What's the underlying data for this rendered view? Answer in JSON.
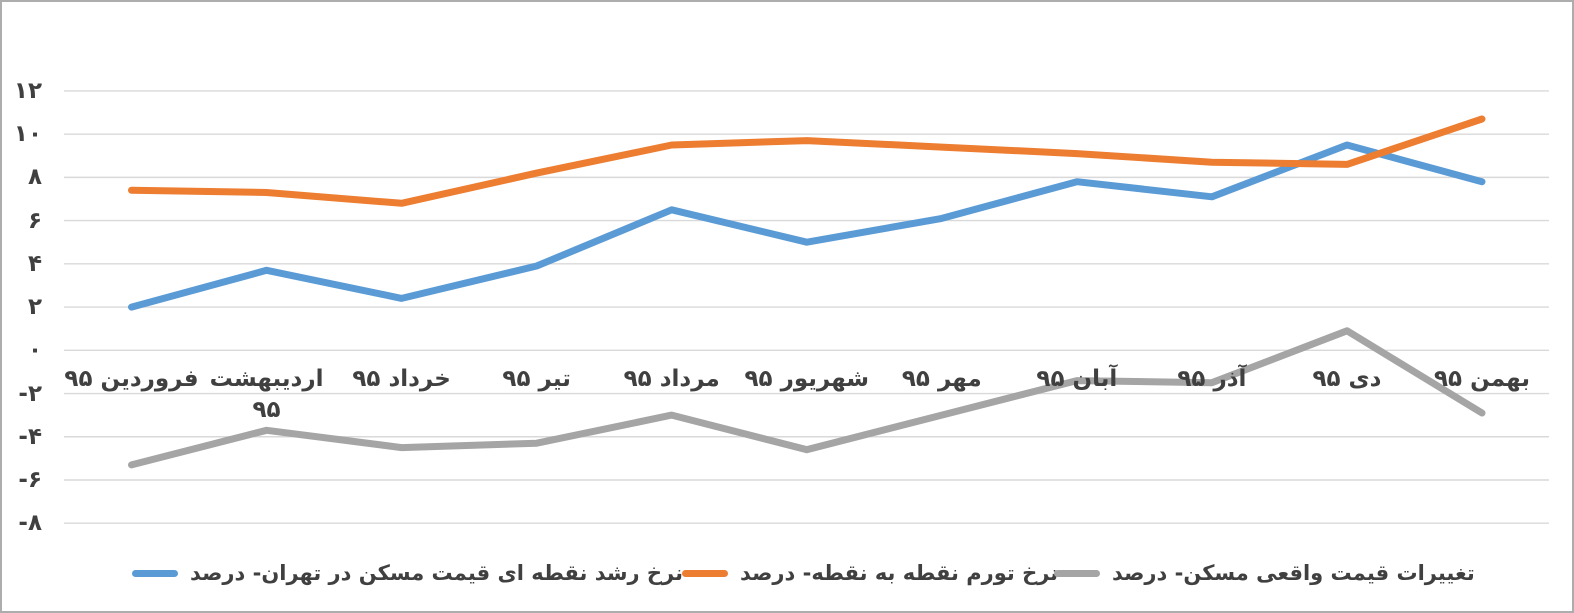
{
  "chart_data": {
    "type": "line",
    "title": "",
    "rtl": true,
    "grid": true,
    "legend_position": "bottom",
    "categories": [
      "فروردین ۹۵",
      "اردیبهشت\n۹۵",
      "خرداد ۹۵",
      "تیر ۹۵",
      "مرداد ۹۵",
      "شهریور ۹۵",
      "مهر ۹۵",
      "آبان ۹۵",
      "آذر ۹۵",
      "دی ۹۵",
      "بهمن ۹۵"
    ],
    "series": [
      {
        "name": "نرخ رشد نقطه ای قیمت مسکن در تهران- درصد",
        "color": "#5B9BD5",
        "values": [
          2.0,
          3.7,
          2.4,
          3.9,
          6.5,
          5.0,
          6.1,
          7.8,
          7.1,
          9.5,
          7.8
        ]
      },
      {
        "name": "نرخ تورم نقطه به نقطه- درصد",
        "color": "#ED7D31",
        "values": [
          7.4,
          7.3,
          6.8,
          8.2,
          9.5,
          9.7,
          9.4,
          9.1,
          8.7,
          8.6,
          10.7
        ]
      },
      {
        "name": "تغییرات قیمت واقعی مسکن- درصد",
        "color": "#A5A5A5",
        "values": [
          -5.3,
          -3.7,
          -4.5,
          -4.3,
          -3.0,
          -4.6,
          -3.0,
          -1.4,
          -1.5,
          0.9,
          -2.9
        ]
      }
    ],
    "y_axis": {
      "min": -8,
      "max": 12,
      "step": 2,
      "ticks": [
        {
          "value": 12,
          "label": "۱۲"
        },
        {
          "value": 10,
          "label": "۱۰"
        },
        {
          "value": 8,
          "label": "۸"
        },
        {
          "value": 6,
          "label": "۶"
        },
        {
          "value": 4,
          "label": "۴"
        },
        {
          "value": 2,
          "label": "۲"
        },
        {
          "value": 0,
          "label": "۰"
        },
        {
          "value": -2,
          "label": "-۲"
        },
        {
          "value": -4,
          "label": "-۴"
        },
        {
          "value": -6,
          "label": "-۶"
        },
        {
          "value": -8,
          "label": "-۸"
        }
      ]
    },
    "grid_color": "#D9D9D9",
    "text_color": "#404040",
    "background_color": "#FFFFFF",
    "border_color": "#ADADAD"
  }
}
